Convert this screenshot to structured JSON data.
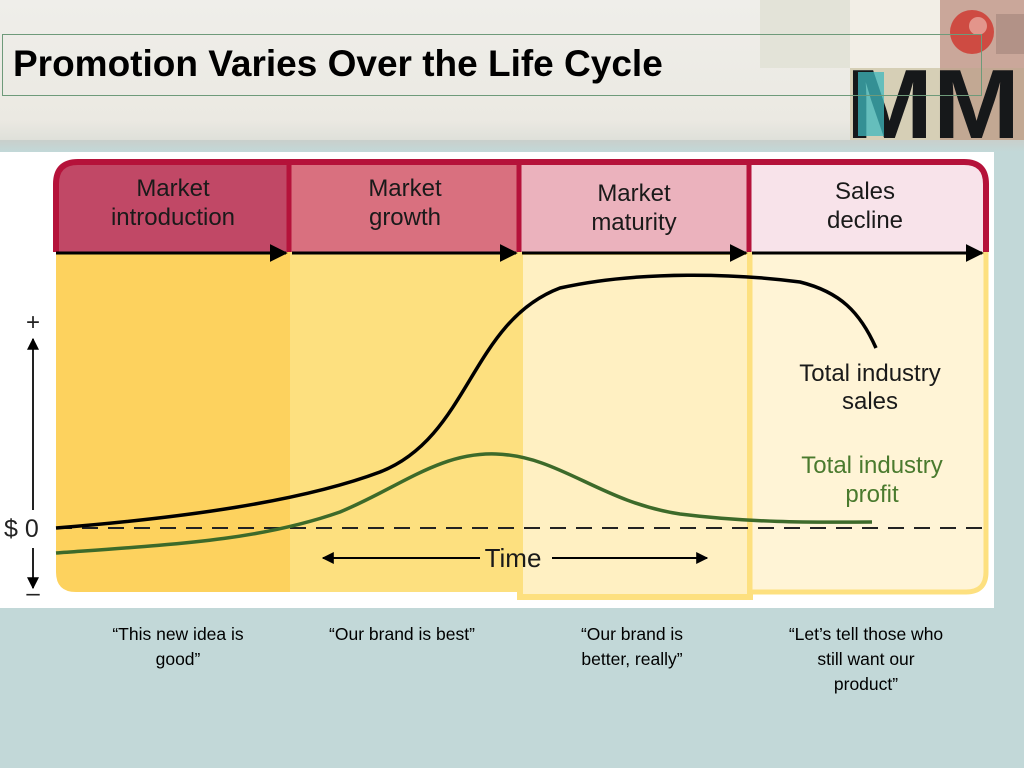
{
  "slide": {
    "title": "Promotion Varies Over the Life Cycle",
    "logo_text": "MM"
  },
  "diagram": {
    "stages": [
      {
        "line1": "Market",
        "line2": "introduction"
      },
      {
        "line1": "Market",
        "line2": "growth"
      },
      {
        "line1": "Market",
        "line2": "maturity"
      },
      {
        "line1": "Sales",
        "line2": "decline"
      }
    ],
    "axis": {
      "plus": "+",
      "zero": "$ 0",
      "minus": "–"
    },
    "time_label": "Time",
    "sales_label": {
      "line1": "Total industry",
      "line2": "sales"
    },
    "profit_label": {
      "line1": "Total industry",
      "line2": "profit"
    }
  },
  "captions": [
    {
      "line1": "“This new idea is",
      "line2": "good”"
    },
    {
      "line1": "“Our brand is best”"
    },
    {
      "line1": "“Our brand is",
      "line2": "better, really”"
    },
    {
      "line1": "“Let’s tell those who",
      "line2": "still want our",
      "line3": "product”"
    }
  ],
  "colors": {
    "stage_border": "#b5123a",
    "sales_curve": "#000000",
    "profit_curve": "#3d6a2a",
    "profit_label": "#4a7a2e"
  }
}
